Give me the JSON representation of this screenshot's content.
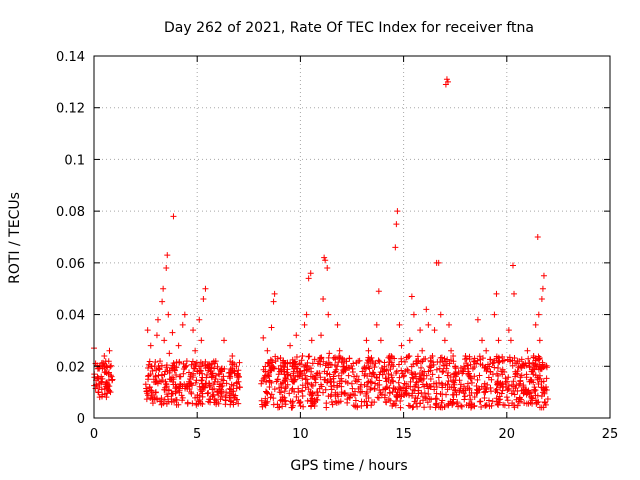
{
  "chart_data": {
    "type": "scatter",
    "title": "Day 262 of 2021, Rate Of TEC Index for receiver ftna",
    "xlabel": "GPS time / hours",
    "ylabel": "ROTI / TECUs",
    "xlim": [
      0,
      25
    ],
    "ylim": [
      0,
      0.14
    ],
    "xticks": [
      0,
      5,
      10,
      15,
      20,
      25
    ],
    "xtick_labels": [
      "0",
      "5",
      "10",
      "15",
      "20",
      "25"
    ],
    "yticks": [
      0,
      0.02,
      0.04,
      0.06,
      0.08,
      0.1,
      0.12,
      0.14
    ],
    "ytick_labels": [
      "0",
      "0.02",
      "0.04",
      "0.06",
      "0.08",
      "0.1",
      "0.12",
      "0.14"
    ],
    "grid": true,
    "legend": "none",
    "marker": "+",
    "color": "#ff0000",
    "series": [
      {
        "points": [
          [
            0.0,
            0.027
          ],
          [
            0.1,
            0.013
          ],
          [
            0.2,
            0.01
          ],
          [
            0.3,
            0.02
          ],
          [
            0.35,
            0.016
          ],
          [
            0.4,
            0.009
          ],
          [
            0.5,
            0.024
          ],
          [
            0.55,
            0.013
          ],
          [
            0.6,
            0.02
          ],
          [
            0.65,
            0.012
          ],
          [
            0.7,
            0.017
          ],
          [
            0.75,
            0.026
          ],
          [
            0.8,
            0.01
          ],
          [
            0.85,
            0.016
          ],
          [
            2.6,
            0.034
          ],
          [
            2.7,
            0.012
          ],
          [
            2.75,
            0.028
          ],
          [
            2.8,
            0.02
          ],
          [
            2.9,
            0.015
          ],
          [
            3.0,
            0.01
          ],
          [
            3.05,
            0.032
          ],
          [
            3.1,
            0.038
          ],
          [
            3.2,
            0.022
          ],
          [
            3.25,
            0.014
          ],
          [
            3.3,
            0.045
          ],
          [
            3.35,
            0.05
          ],
          [
            3.4,
            0.03
          ],
          [
            3.45,
            0.018
          ],
          [
            3.5,
            0.058
          ],
          [
            3.55,
            0.063
          ],
          [
            3.6,
            0.04
          ],
          [
            3.65,
            0.025
          ],
          [
            3.7,
            0.015
          ],
          [
            3.8,
            0.033
          ],
          [
            3.85,
            0.078
          ],
          [
            3.9,
            0.02
          ],
          [
            4.0,
            0.012
          ],
          [
            4.1,
            0.028
          ],
          [
            4.2,
            0.016
          ],
          [
            4.3,
            0.036
          ],
          [
            4.4,
            0.04
          ],
          [
            4.5,
            0.022
          ],
          [
            4.6,
            0.014
          ],
          [
            4.7,
            0.01
          ],
          [
            4.8,
            0.034
          ],
          [
            4.9,
            0.026
          ],
          [
            5.0,
            0.018
          ],
          [
            5.1,
            0.038
          ],
          [
            5.2,
            0.03
          ],
          [
            5.3,
            0.046
          ],
          [
            5.4,
            0.05
          ],
          [
            5.5,
            0.02
          ],
          [
            5.6,
            0.012
          ],
          [
            5.7,
            0.016
          ],
          [
            5.8,
            0.009
          ],
          [
            5.9,
            0.022
          ],
          [
            6.0,
            0.014
          ],
          [
            6.2,
            0.018
          ],
          [
            6.3,
            0.03
          ],
          [
            6.4,
            0.01
          ],
          [
            6.6,
            0.016
          ],
          [
            6.7,
            0.024
          ],
          [
            6.8,
            0.008
          ],
          [
            6.9,
            0.02
          ],
          [
            7.0,
            0.014
          ],
          [
            7.05,
            0.012
          ],
          [
            8.2,
            0.031
          ],
          [
            8.3,
            0.018
          ],
          [
            8.4,
            0.026
          ],
          [
            8.5,
            0.012
          ],
          [
            8.55,
            0.008
          ],
          [
            8.6,
            0.035
          ],
          [
            8.7,
            0.045
          ],
          [
            8.75,
            0.048
          ],
          [
            8.8,
            0.022
          ],
          [
            8.9,
            0.015
          ],
          [
            9.0,
            0.01
          ],
          [
            9.1,
            0.018
          ],
          [
            9.3,
            0.012
          ],
          [
            9.5,
            0.028
          ],
          [
            9.6,
            0.02
          ],
          [
            9.7,
            0.014
          ],
          [
            9.8,
            0.032
          ],
          [
            9.9,
            0.01
          ],
          [
            10.0,
            0.018
          ],
          [
            10.1,
            0.024
          ],
          [
            10.2,
            0.036
          ],
          [
            10.3,
            0.04
          ],
          [
            10.4,
            0.054
          ],
          [
            10.5,
            0.056
          ],
          [
            10.55,
            0.03
          ],
          [
            10.6,
            0.016
          ],
          [
            10.8,
            0.01
          ],
          [
            10.9,
            0.022
          ],
          [
            11.0,
            0.032
          ],
          [
            11.1,
            0.046
          ],
          [
            11.15,
            0.062
          ],
          [
            11.2,
            0.061
          ],
          [
            11.3,
            0.058
          ],
          [
            11.35,
            0.04
          ],
          [
            11.4,
            0.025
          ],
          [
            11.5,
            0.014
          ],
          [
            11.7,
            0.018
          ],
          [
            11.8,
            0.036
          ],
          [
            11.9,
            0.026
          ],
          [
            12.0,
            0.01
          ],
          [
            12.1,
            0.02
          ],
          [
            12.2,
            0.014
          ],
          [
            12.4,
            0.008
          ],
          [
            12.6,
            0.016
          ],
          [
            12.8,
            0.022
          ],
          [
            12.9,
            0.012
          ],
          [
            13.0,
            0.018
          ],
          [
            13.2,
            0.03
          ],
          [
            13.3,
            0.026
          ],
          [
            13.4,
            0.014
          ],
          [
            13.5,
            0.022
          ],
          [
            13.7,
            0.036
          ],
          [
            13.8,
            0.049
          ],
          [
            13.9,
            0.03
          ],
          [
            14.0,
            0.018
          ],
          [
            14.2,
            0.012
          ],
          [
            14.4,
            0.024
          ],
          [
            14.5,
            0.02
          ],
          [
            14.6,
            0.066
          ],
          [
            14.65,
            0.075
          ],
          [
            14.7,
            0.08
          ],
          [
            14.8,
            0.036
          ],
          [
            14.9,
            0.028
          ],
          [
            15.0,
            0.016
          ],
          [
            15.1,
            0.01
          ],
          [
            15.3,
            0.03
          ],
          [
            15.4,
            0.047
          ],
          [
            15.5,
            0.04
          ],
          [
            15.6,
            0.022
          ],
          [
            15.7,
            0.014
          ],
          [
            15.8,
            0.034
          ],
          [
            15.9,
            0.026
          ],
          [
            16.0,
            0.018
          ],
          [
            16.1,
            0.042
          ],
          [
            16.2,
            0.036
          ],
          [
            16.3,
            0.012
          ],
          [
            16.4,
            0.024
          ],
          [
            16.5,
            0.034
          ],
          [
            16.6,
            0.06
          ],
          [
            16.7,
            0.06
          ],
          [
            16.8,
            0.04
          ],
          [
            16.9,
            0.022
          ],
          [
            17.0,
            0.03
          ],
          [
            17.05,
            0.129
          ],
          [
            17.1,
            0.131
          ],
          [
            17.15,
            0.13
          ],
          [
            17.2,
            0.036
          ],
          [
            17.3,
            0.026
          ],
          [
            17.4,
            0.014
          ],
          [
            17.5,
            0.02
          ],
          [
            17.7,
            0.01
          ],
          [
            17.9,
            0.018
          ],
          [
            18.0,
            0.024
          ],
          [
            18.2,
            0.016
          ],
          [
            18.4,
            0.022
          ],
          [
            18.6,
            0.038
          ],
          [
            18.8,
            0.03
          ],
          [
            18.9,
            0.012
          ],
          [
            19.0,
            0.026
          ],
          [
            19.2,
            0.018
          ],
          [
            19.4,
            0.04
          ],
          [
            19.5,
            0.048
          ],
          [
            19.6,
            0.03
          ],
          [
            19.8,
            0.022
          ],
          [
            20.0,
            0.014
          ],
          [
            20.1,
            0.034
          ],
          [
            20.2,
            0.03
          ],
          [
            20.3,
            0.059
          ],
          [
            20.35,
            0.048
          ],
          [
            20.4,
            0.016
          ],
          [
            20.6,
            0.022
          ],
          [
            20.8,
            0.012
          ],
          [
            21.0,
            0.026
          ],
          [
            21.1,
            0.014
          ],
          [
            21.2,
            0.018
          ],
          [
            21.3,
            0.024
          ],
          [
            21.4,
            0.036
          ],
          [
            21.5,
            0.07
          ],
          [
            21.55,
            0.04
          ],
          [
            21.6,
            0.03
          ],
          [
            21.7,
            0.046
          ],
          [
            21.75,
            0.05
          ],
          [
            21.8,
            0.055
          ],
          [
            21.85,
            0.02
          ],
          [
            21.9,
            0.012
          ]
        ]
      }
    ],
    "clusters": [
      {
        "x": [
          0.0,
          0.9
        ],
        "y_base": [
          0.008,
          0.022
        ]
      },
      {
        "x": [
          2.5,
          7.1
        ],
        "y_base": [
          0.005,
          0.022
        ]
      },
      {
        "x": [
          8.1,
          22.0
        ],
        "y_base": [
          0.004,
          0.024
        ]
      }
    ]
  }
}
